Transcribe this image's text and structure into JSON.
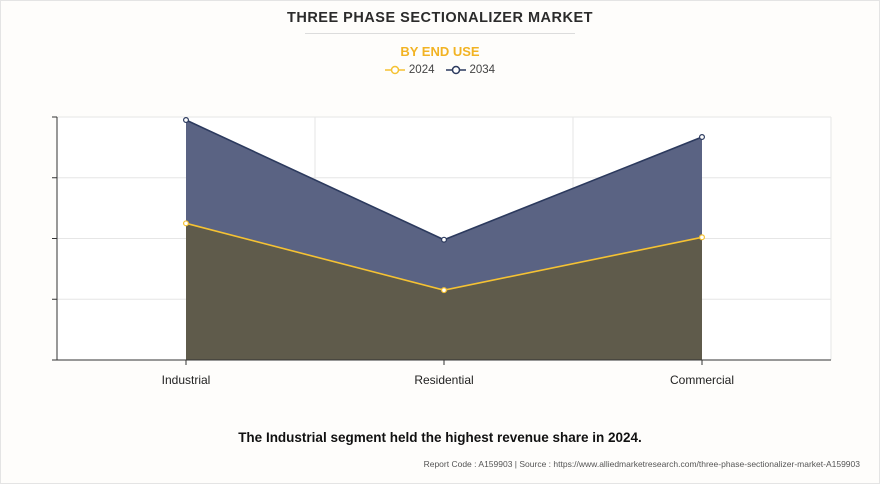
{
  "header": {
    "title": "THREE PHASE SECTIONALIZER MARKET",
    "subtitle": "BY END USE"
  },
  "chart_data": {
    "type": "area",
    "categories": [
      "Industrial",
      "Residential",
      "Commercial"
    ],
    "series": [
      {
        "name": "2024",
        "values": [
          2.25,
          1.15,
          2.02
        ],
        "color": "#f5c233",
        "fill": "#5f5b4b"
      },
      {
        "name": "2034",
        "values": [
          3.95,
          1.98,
          3.67
        ],
        "color": "#2c3a5e",
        "fill": "#5a6383"
      }
    ],
    "ylim": [
      0,
      4
    ],
    "yticks": [
      0,
      1,
      2,
      3,
      4
    ],
    "show_y_tick_labels": false,
    "grid": true,
    "legend_position": "top-center",
    "xlabel": "",
    "ylabel": ""
  },
  "caption": "The Industrial segment held the highest revenue share in 2024.",
  "footer": "Report Code : A159903  |  Source : https://www.alliedmarketresearch.com/three-phase-sectionalizer-market-A159903"
}
